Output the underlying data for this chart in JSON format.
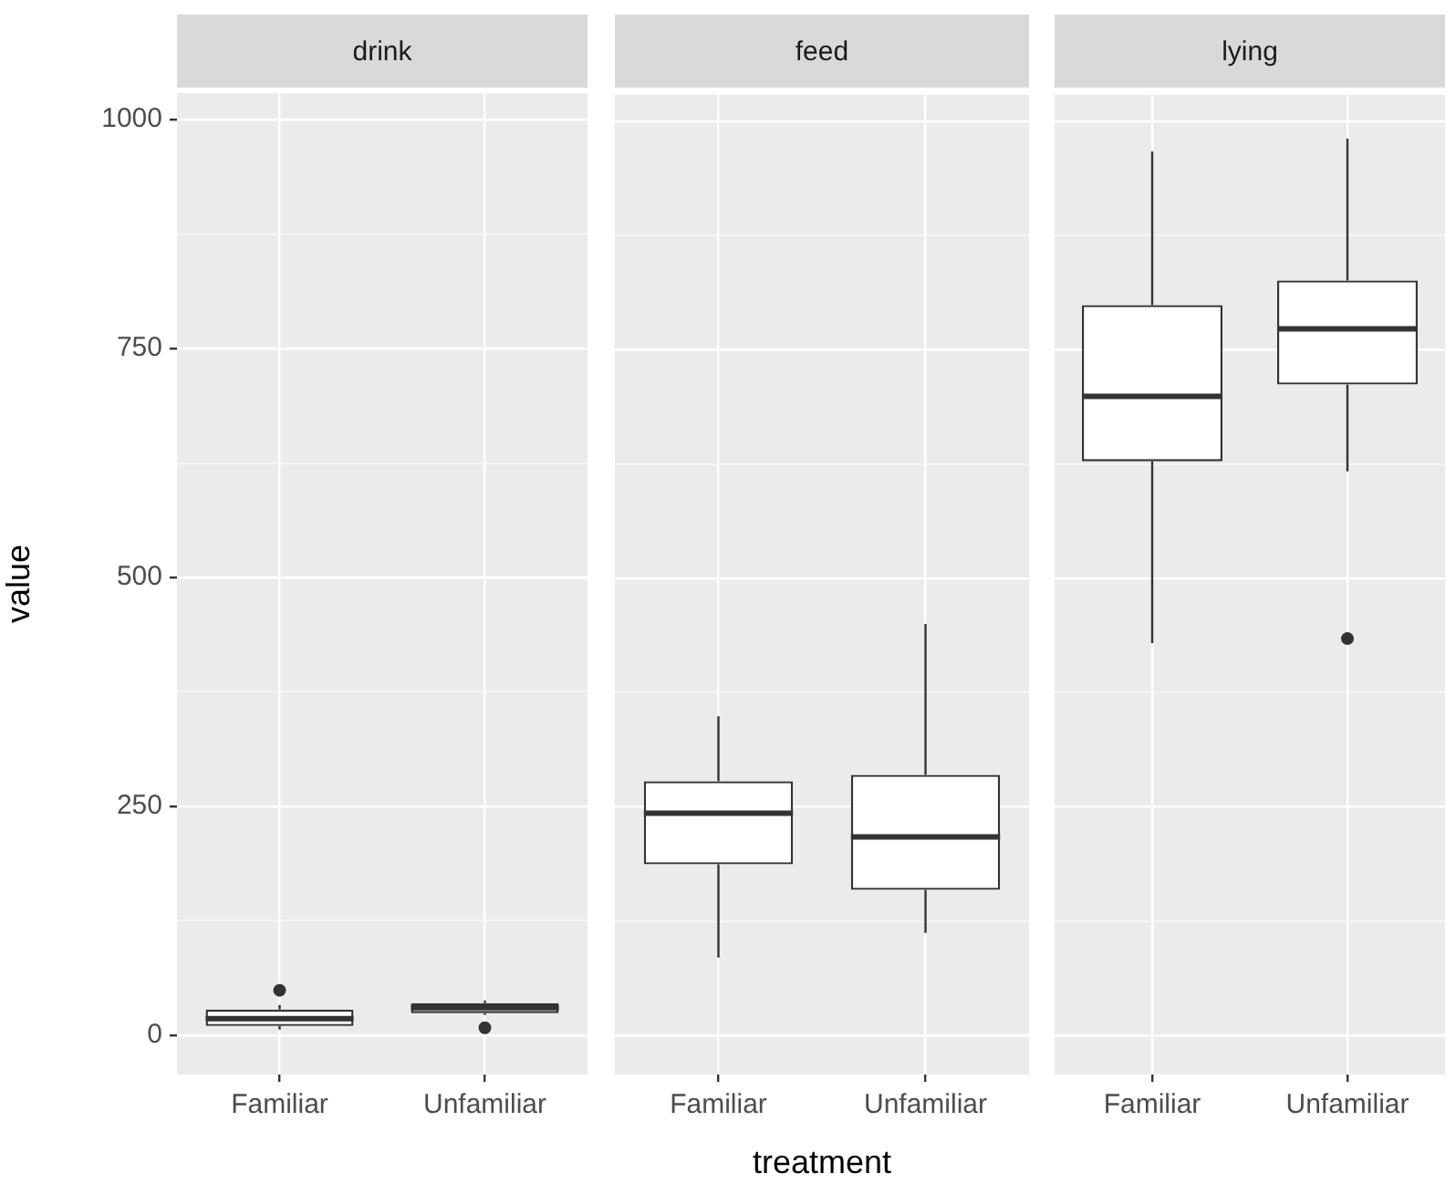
{
  "chart_data": [
    {
      "type": "box",
      "title": "drink",
      "ylabel": "value",
      "categories": [
        "Familiar",
        "Unfamiliar"
      ],
      "boxes": [
        {
          "low": 6,
          "q1": 10,
          "median": 18,
          "q3": 28,
          "high": 33,
          "outliers": [
            49
          ]
        },
        {
          "low": 22,
          "q1": 24,
          "median": 30,
          "q3": 35,
          "high": 38,
          "outliers": [
            8
          ]
        }
      ],
      "ylim": [
        -43,
        1029
      ],
      "yticks": [
        0,
        {
          "value": 125,
          "label": null
        },
        250,
        {
          "value": 375,
          "label": null
        },
        500,
        {
          "value": 625,
          "label": null
        },
        750,
        {
          "value": 875,
          "label": null
        },
        1000
      ],
      "grid": true
    },
    {
      "type": "box",
      "title": "feed",
      "xlabel": "treatment",
      "categories": [
        "Familiar",
        "Unfamiliar"
      ],
      "boxes": [
        {
          "low": 85,
          "q1": 187,
          "median": 243,
          "q3": 278,
          "high": 349
        },
        {
          "low": 112,
          "q1": 159,
          "median": 217,
          "q3": 285,
          "high": 450
        }
      ],
      "ylim": [
        -43,
        1029
      ],
      "yticks": [
        0,
        {
          "value": 125,
          "label": null
        },
        250,
        {
          "value": 375,
          "label": null
        },
        500,
        {
          "value": 625,
          "label": null
        },
        750,
        {
          "value": 875,
          "label": null
        },
        1000
      ],
      "grid": true,
      "tick_labels": "x"
    },
    {
      "type": "box",
      "title": "lying",
      "categories": [
        "Familiar",
        "Unfamiliar"
      ],
      "boxes": [
        {
          "low": 429,
          "q1": 628,
          "median": 699,
          "q3": 799,
          "high": 967
        },
        {
          "low": 617,
          "q1": 712,
          "median": 773,
          "q3": 826,
          "high": 981,
          "outliers": [
            434
          ]
        }
      ],
      "ylim": [
        -43,
        1029
      ],
      "yticks": [
        0,
        {
          "value": 125,
          "label": null
        },
        250,
        {
          "value": 375,
          "label": null
        },
        500,
        {
          "value": 625,
          "label": null
        },
        750,
        {
          "value": 875,
          "label": null
        },
        1000
      ],
      "grid": true,
      "tick_labels": "x"
    }
  ]
}
